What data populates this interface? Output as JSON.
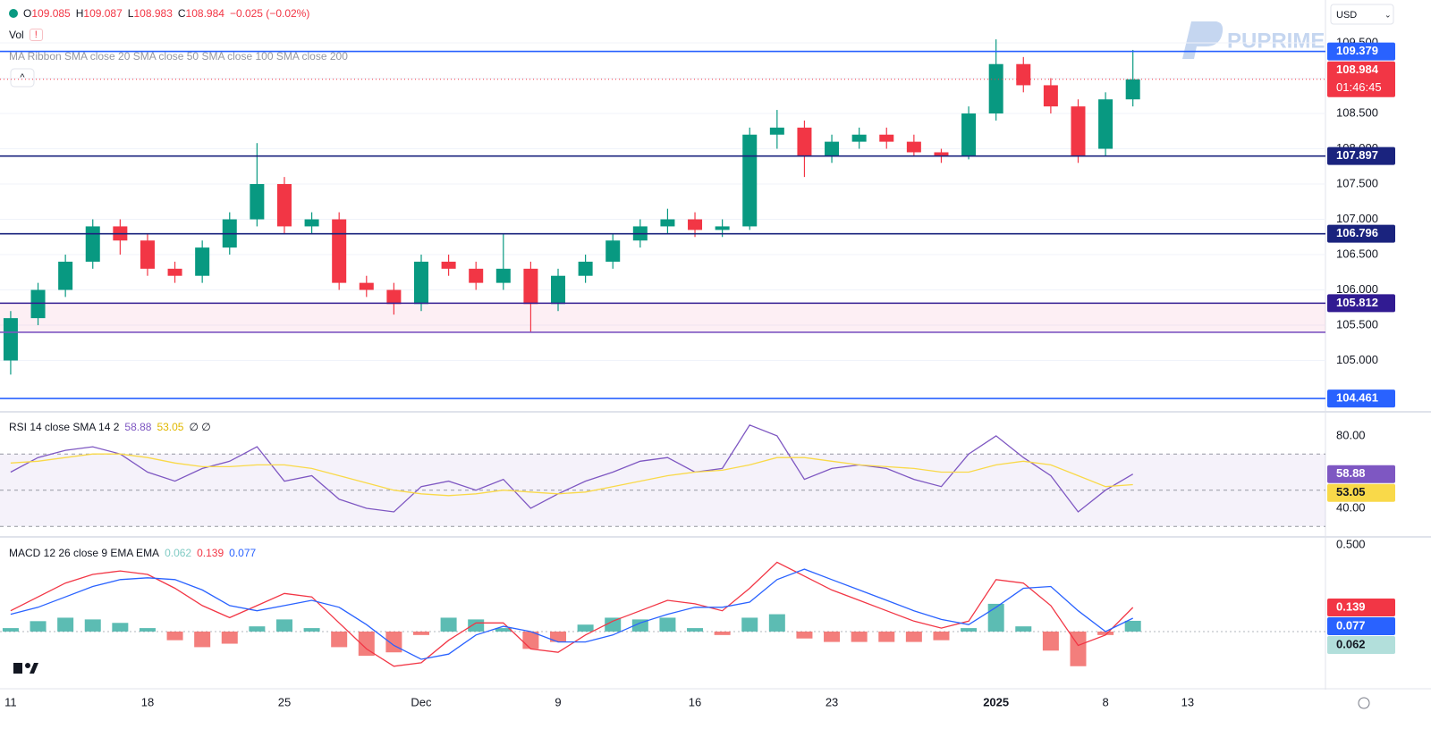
{
  "toolbar": {
    "currency": "USD",
    "brand": "PUPRIME",
    "vol_label": "Vol",
    "vol_alert": "!",
    "ma_label": "MA Ribbon SMA close 20 SMA close 50 SMA close 100 SMA close 200",
    "countdown": "01:46:45"
  },
  "chart_data": [
    {
      "type": "candlestick",
      "legend": [
        {
          "name": "O",
          "value": 109.085
        },
        {
          "name": "H",
          "value": 109.087
        },
        {
          "name": "L",
          "value": 108.983
        },
        {
          "name": "C",
          "value": 108.984
        }
      ],
      "change": "−0.025 (−0.02%)",
      "x": [
        0,
        1,
        2,
        3,
        4,
        5,
        6,
        7,
        8,
        9,
        10,
        11,
        12,
        13,
        14,
        15,
        16,
        17,
        18,
        19,
        20,
        21,
        22,
        23,
        24,
        25,
        26,
        27,
        28,
        29,
        30,
        31,
        32,
        33,
        34,
        35,
        36,
        37,
        38,
        39,
        40,
        41
      ],
      "open": [
        105.0,
        105.6,
        106.0,
        106.4,
        106.9,
        106.7,
        106.3,
        106.2,
        106.6,
        107.0,
        107.5,
        106.9,
        107.0,
        106.1,
        106.0,
        105.8,
        106.4,
        106.3,
        106.1,
        106.3,
        105.8,
        106.2,
        106.4,
        106.7,
        106.9,
        107.0,
        106.85,
        106.9,
        108.2,
        108.3,
        107.9,
        108.1,
        108.2,
        108.1,
        107.95,
        107.9,
        108.5,
        109.2,
        108.9,
        108.6,
        108.0,
        108.7
      ],
      "high": [
        105.7,
        106.1,
        106.5,
        107.0,
        107.0,
        106.8,
        106.4,
        106.7,
        107.1,
        108.08,
        107.6,
        107.1,
        107.1,
        106.2,
        106.1,
        106.5,
        106.5,
        106.4,
        106.8,
        106.4,
        106.3,
        106.5,
        106.8,
        107.0,
        107.15,
        107.1,
        107.0,
        108.3,
        108.55,
        108.4,
        108.2,
        108.3,
        108.3,
        108.2,
        108.0,
        108.6,
        109.55,
        109.3,
        109.0,
        108.7,
        108.8,
        109.4
      ],
      "low": [
        104.8,
        105.5,
        105.9,
        106.3,
        106.5,
        106.2,
        106.1,
        106.1,
        106.5,
        106.9,
        106.8,
        106.8,
        106.0,
        105.9,
        105.65,
        105.7,
        106.2,
        106.0,
        106.0,
        105.4,
        105.7,
        106.1,
        106.3,
        106.6,
        106.8,
        106.75,
        106.75,
        106.85,
        108.0,
        107.6,
        107.8,
        108.0,
        108.0,
        107.9,
        107.8,
        107.85,
        108.4,
        108.8,
        108.5,
        107.8,
        107.9,
        108.6
      ],
      "close": [
        105.6,
        106.0,
        106.4,
        106.9,
        106.7,
        106.3,
        106.2,
        106.6,
        107.0,
        107.5,
        106.9,
        107.0,
        106.1,
        106.0,
        105.8,
        106.4,
        106.3,
        106.1,
        106.3,
        105.8,
        106.2,
        106.4,
        106.7,
        106.9,
        107.0,
        106.85,
        106.9,
        108.2,
        108.3,
        107.9,
        108.1,
        108.2,
        108.1,
        107.95,
        107.9,
        108.5,
        109.2,
        108.9,
        108.6,
        107.9,
        108.7,
        108.984
      ],
      "up_color": "#089981",
      "down_color": "#f23645",
      "xlim": [
        -0.39,
        47.97
      ],
      "xticks": [
        {
          "value": 0,
          "label": "11"
        },
        {
          "value": 5,
          "label": "18"
        },
        {
          "value": 10,
          "label": "25"
        },
        {
          "value": 15,
          "label": "Dec"
        },
        {
          "value": 20,
          "label": "9"
        },
        {
          "value": 25,
          "label": "16"
        },
        {
          "value": 30,
          "label": "23"
        },
        {
          "value": 36,
          "label": "2025"
        },
        {
          "value": 40,
          "label": "8"
        },
        {
          "value": 43,
          "label": "13"
        }
      ],
      "ylim": [
        104.285,
        110.108
      ],
      "yticks": [
        {
          "value": 105,
          "label": "105.000"
        },
        {
          "value": 105.5,
          "label": "105.500"
        },
        {
          "value": 106,
          "label": "106.000"
        },
        {
          "value": 106.5,
          "label": "106.500"
        },
        {
          "value": 107,
          "label": "107.000"
        },
        {
          "value": 107.5,
          "label": "107.500"
        },
        {
          "value": 108,
          "label": "108.000"
        },
        {
          "value": 108.5,
          "label": "108.500"
        },
        {
          "value": 109,
          "label": "109.000"
        },
        {
          "value": 109.5,
          "label": "109.500"
        }
      ],
      "grid": true,
      "levels": [
        {
          "value": 109.379,
          "color": "#2962ff",
          "price_tag": true
        },
        {
          "value": 107.897,
          "color": "#1a237e",
          "price_tag": true
        },
        {
          "value": 106.796,
          "color": "#1a237e",
          "price_tag": true
        },
        {
          "value": 105.812,
          "color": "#311b92",
          "price_tag": true
        },
        {
          "value": 105.4,
          "color": "#7e57c2",
          "price_tag": false
        },
        {
          "value": 104.461,
          "color": "#2962ff",
          "price_tag": true
        }
      ],
      "last": 108.984,
      "last_color": "#f23645"
    },
    {
      "type": "line",
      "title": "RSI 14 close SMA 14 2",
      "extra": "∅ ∅",
      "x": [
        0,
        1,
        2,
        3,
        4,
        5,
        6,
        7,
        8,
        9,
        10,
        11,
        12,
        13,
        14,
        15,
        16,
        17,
        18,
        19,
        20,
        21,
        22,
        23,
        24,
        25,
        26,
        27,
        28,
        29,
        30,
        31,
        32,
        33,
        34,
        35,
        36,
        37,
        38,
        39,
        40,
        41
      ],
      "xlim": [
        -0.39,
        47.97
      ],
      "series": [
        {
          "color": "#7e57c2",
          "values": [
            60,
            68,
            72,
            74,
            70,
            60,
            55,
            62,
            66,
            74,
            55,
            58,
            45,
            40,
            38,
            52,
            55,
            50,
            56,
            40,
            48,
            55,
            60,
            66,
            68,
            60,
            62,
            86,
            80,
            56,
            62,
            64,
            62,
            56,
            52,
            70,
            80,
            68,
            58,
            38,
            50,
            58.88
          ]
        },
        {
          "color": "#f9d949",
          "values": [
            65,
            66,
            68,
            70,
            70,
            68,
            65,
            63,
            63,
            64,
            64,
            62,
            58,
            54,
            50,
            48,
            47,
            48,
            50,
            49,
            48,
            49,
            52,
            55,
            58,
            60,
            61,
            64,
            68,
            68,
            66,
            64,
            63,
            62,
            60,
            60,
            64,
            66,
            64,
            58,
            52,
            53.05
          ]
        }
      ],
      "ylim": [
        24.7,
        92.3
      ],
      "yticks": [
        {
          "value": 40,
          "label": "40.00"
        },
        {
          "value": 80,
          "label": "80.00"
        }
      ],
      "band": [
        30,
        70
      ],
      "midline": 50,
      "band_color": "#7e57c2"
    },
    {
      "type": "macd",
      "title": "MACD 12 26 close 9 EMA EMA",
      "x": [
        0,
        1,
        2,
        3,
        4,
        5,
        6,
        7,
        8,
        9,
        10,
        11,
        12,
        13,
        14,
        15,
        16,
        17,
        18,
        19,
        20,
        21,
        22,
        23,
        24,
        25,
        26,
        27,
        28,
        29,
        30,
        31,
        32,
        33,
        34,
        35,
        36,
        37,
        38,
        39,
        40,
        41
      ],
      "xlim": [
        -0.39,
        47.97
      ],
      "series": [
        {
          "kind": "histogram",
          "color": "#26a69a",
          "negative_color": "#ef5350",
          "tag_color": "#b2dfdb",
          "values": [
            0.02,
            0.06,
            0.08,
            0.07,
            0.05,
            0.02,
            -0.05,
            -0.09,
            -0.07,
            0.03,
            0.07,
            0.02,
            -0.09,
            -0.14,
            -0.12,
            -0.02,
            0.08,
            0.07,
            0.02,
            -0.1,
            -0.06,
            0.04,
            0.08,
            0.07,
            0.08,
            0.02,
            -0.02,
            0.08,
            0.1,
            -0.04,
            -0.06,
            -0.06,
            -0.06,
            -0.06,
            -0.05,
            0.02,
            0.16,
            0.03,
            -0.11,
            -0.2,
            -0.02,
            0.062
          ]
        },
        {
          "kind": "line",
          "color": "#f23645",
          "values": [
            0.12,
            0.2,
            0.28,
            0.33,
            0.35,
            0.33,
            0.25,
            0.15,
            0.08,
            0.15,
            0.22,
            0.2,
            0.05,
            -0.1,
            -0.2,
            -0.18,
            -0.05,
            0.05,
            0.05,
            -0.1,
            -0.12,
            -0.02,
            0.06,
            0.12,
            0.18,
            0.16,
            0.12,
            0.25,
            0.4,
            0.32,
            0.24,
            0.18,
            0.12,
            0.06,
            0.02,
            0.06,
            0.3,
            0.28,
            0.15,
            -0.08,
            -0.02,
            0.139
          ]
        },
        {
          "kind": "line",
          "color": "#2962ff",
          "values": [
            0.1,
            0.14,
            0.2,
            0.26,
            0.3,
            0.31,
            0.3,
            0.24,
            0.15,
            0.12,
            0.15,
            0.18,
            0.14,
            0.04,
            -0.08,
            -0.16,
            -0.13,
            -0.02,
            0.03,
            0,
            -0.06,
            -0.06,
            -0.02,
            0.05,
            0.1,
            0.14,
            0.14,
            0.17,
            0.3,
            0.36,
            0.3,
            0.24,
            0.18,
            0.12,
            0.07,
            0.04,
            0.14,
            0.25,
            0.26,
            0.12,
            0.0,
            0.077
          ]
        }
      ],
      "ylim": [
        -0.325,
        0.536
      ],
      "yticks": [
        {
          "value": 0,
          "label": "0.000"
        },
        {
          "value": 0.5,
          "label": "0.500"
        }
      ]
    }
  ]
}
